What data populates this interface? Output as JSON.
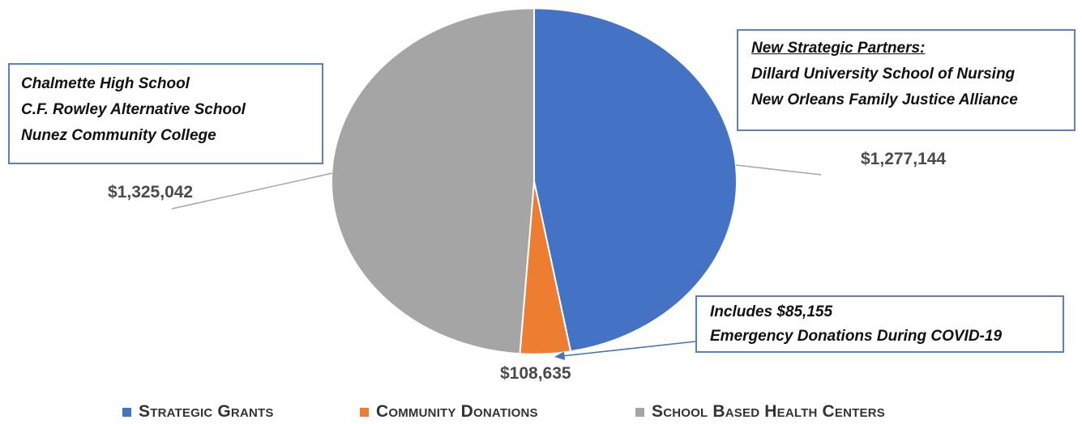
{
  "chart_data": {
    "type": "pie",
    "slices": [
      {
        "name": "Strategic Grants",
        "value": 1277144,
        "label": "$1,277,144",
        "color": "#4472c4"
      },
      {
        "name": "Community Donations",
        "value": 108635,
        "label": "$108,635",
        "color": "#ed7d31"
      },
      {
        "name": "School Based Health Centers",
        "value": 1325042,
        "label": "$1,325,042",
        "color": "#a5a5a5"
      }
    ],
    "start_angle_deg": 0,
    "direction": "clockwise",
    "legend_position": "bottom"
  },
  "legend": {
    "items": [
      {
        "label": "Strategic Grants",
        "color": "#4472c4"
      },
      {
        "label": "Community Donations",
        "color": "#ed7d31"
      },
      {
        "label": "School Based Health Centers",
        "color": "#a5a5a5"
      }
    ]
  },
  "callouts": {
    "sbhc": [
      "Chalmette High School",
      "C.F. Rowley Alternative School",
      "Nunez Community College"
    ],
    "partners_title": "New Strategic Partners:",
    "partners": [
      "Dillard University School of Nursing",
      "New Orleans Family Justice Alliance"
    ],
    "covid": [
      "Includes $85,155",
      "Emergency Donations During COVID-19"
    ]
  },
  "colors": {
    "callout_border": "#5b7fc7",
    "leader_line": "#a6a6a6",
    "arrow": "#4472c4"
  }
}
